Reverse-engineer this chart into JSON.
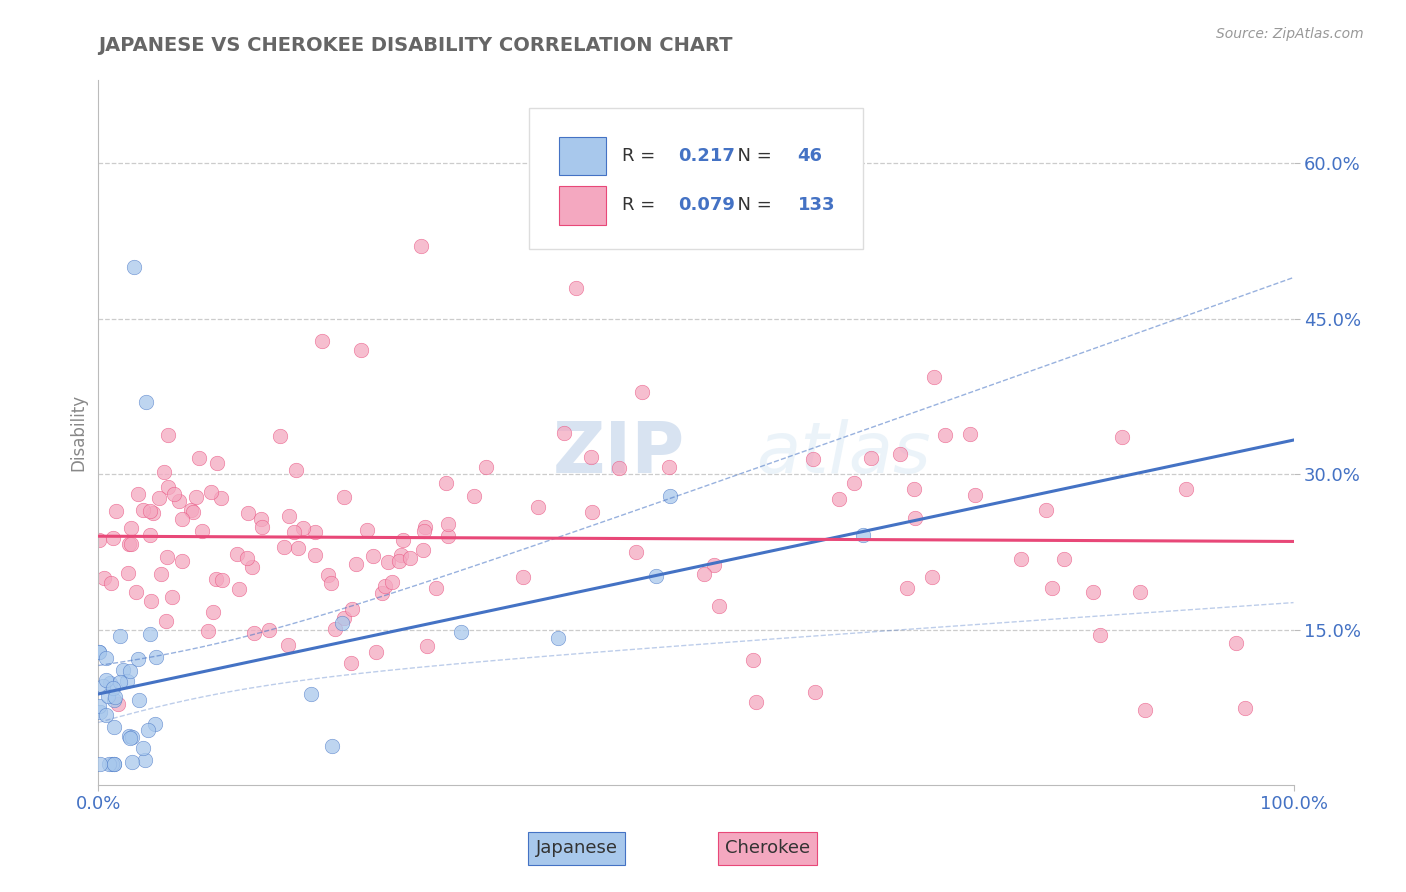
{
  "title": "JAPANESE VS CHEROKEE DISABILITY CORRELATION CHART",
  "source_text": "Source: ZipAtlas.com",
  "ylabel": "Disability",
  "xlim": [
    0,
    1
  ],
  "ylim": [
    0,
    0.68
  ],
  "yticks": [
    0.15,
    0.3,
    0.45,
    0.6
  ],
  "ytick_labels": [
    "15.0%",
    "30.0%",
    "45.0%",
    "60.0%"
  ],
  "xtick_labels": [
    "0.0%",
    "100.0%"
  ],
  "legend_R1": "0.217",
  "legend_N1": "46",
  "legend_R2": "0.079",
  "legend_N2": "133",
  "color_japanese": "#A8C8EC",
  "color_cherokee": "#F4A8C0",
  "color_japanese_line": "#4472C4",
  "color_cherokee_line": "#E84878",
  "color_title": "#666666",
  "color_axis_label": "#888888",
  "color_tick_label": "#4472C4",
  "color_legend_text_black": "#333333",
  "color_legend_R": "#4472C4",
  "background_color": "#FFFFFF",
  "grid_color": "#CCCCCC"
}
